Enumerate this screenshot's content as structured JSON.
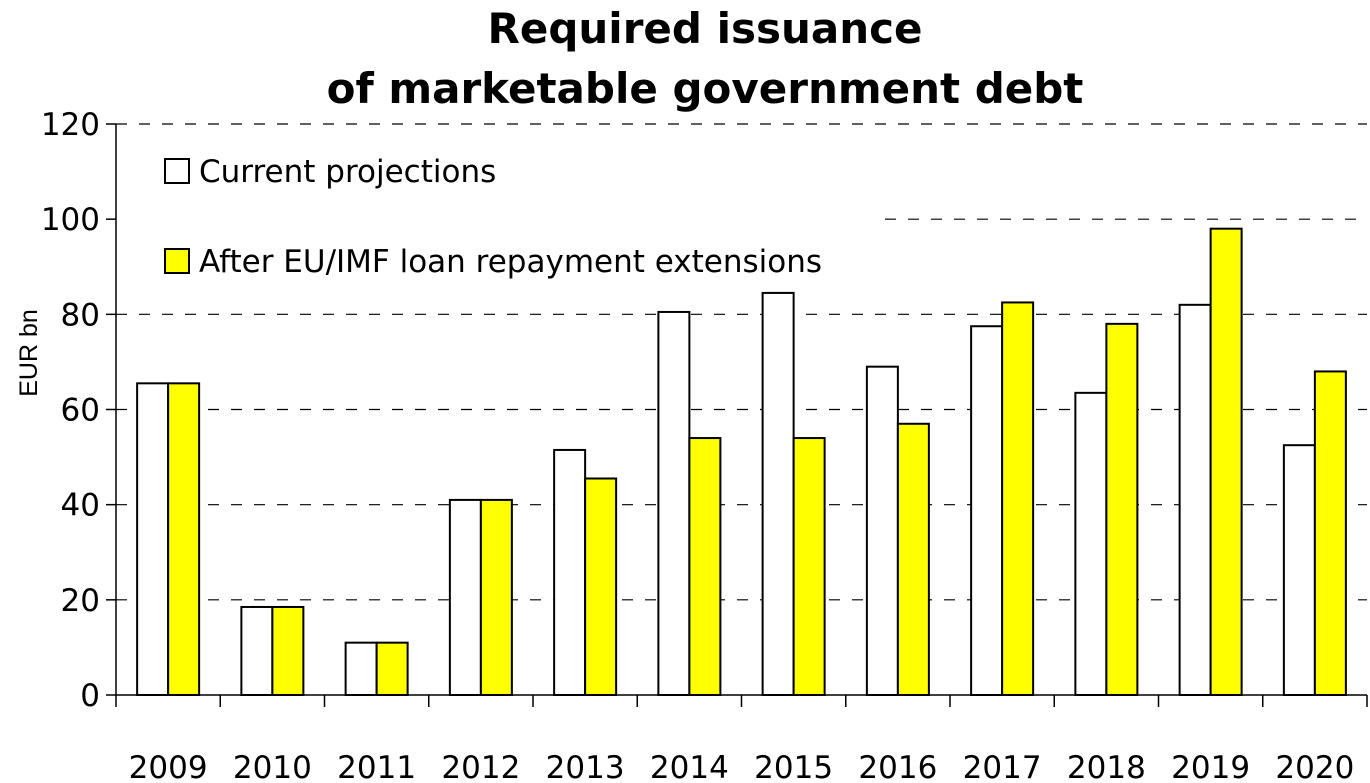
{
  "chart_data": {
    "type": "bar",
    "title": [
      "Required issuance",
      "of marketable government debt"
    ],
    "ylabel": "EUR bn",
    "xlabel": "",
    "ylim": [
      0,
      120
    ],
    "yticks": [
      0,
      20,
      40,
      60,
      80,
      100,
      120
    ],
    "grid": "horizontal dashed",
    "legend_position": "top-left",
    "categories": [
      "2009",
      "2010",
      "2011",
      "2012",
      "2013",
      "2014",
      "2015",
      "2016",
      "2017",
      "2018",
      "2019",
      "2020"
    ],
    "series": [
      {
        "name": "Current projections",
        "color": "#ffffff",
        "values": [
          65.5,
          18.5,
          11,
          41,
          51.5,
          80.5,
          84.5,
          69,
          77.5,
          63.5,
          82,
          52.5
        ]
      },
      {
        "name": "After EU/IMF loan repayment extensions",
        "color": "#ffff00",
        "values": [
          65.5,
          18.5,
          11,
          41,
          45.5,
          54,
          54,
          57,
          82.5,
          78,
          98,
          68
        ]
      }
    ]
  }
}
